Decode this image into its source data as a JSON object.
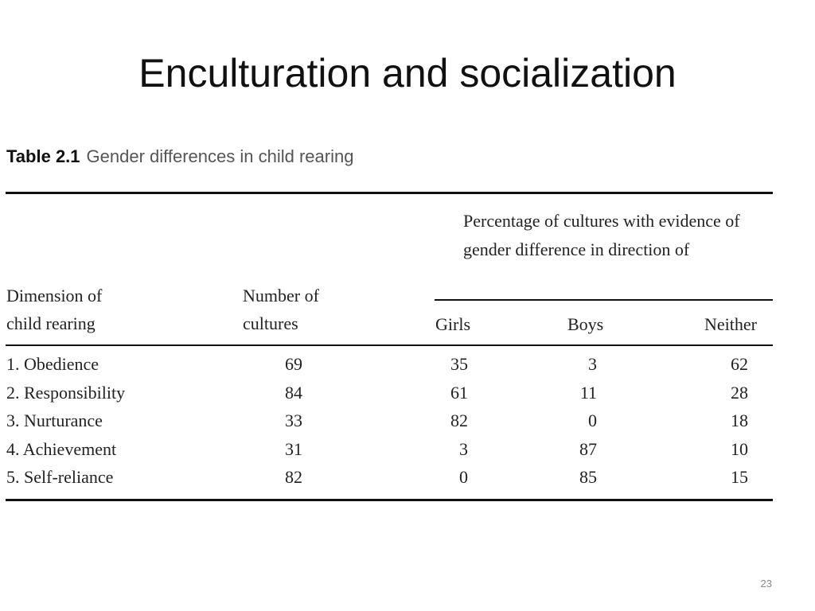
{
  "slide": {
    "title": "Enculturation and socialization",
    "page_number": "23"
  },
  "table": {
    "caption_label": "Table 2.1",
    "caption_text": "Gender differences in child rearing",
    "header": {
      "dimension_line1": "Dimension of",
      "dimension_line2": "child rearing",
      "number_line1": "Number of",
      "number_line2": "cultures",
      "percentage_group": "Percentage of cultures with evidence of gender difference in direction of",
      "girls": "Girls",
      "boys": "Boys",
      "neither": "Neither"
    },
    "rows": [
      {
        "dimension": "1. Obedience",
        "cultures": "69",
        "girls": "35",
        "boys": "3",
        "neither": "62"
      },
      {
        "dimension": "2. Responsibility",
        "cultures": "84",
        "girls": "61",
        "boys": "11",
        "neither": "28"
      },
      {
        "dimension": "3. Nurturance",
        "cultures": "33",
        "girls": "82",
        "boys": "0",
        "neither": "18"
      },
      {
        "dimension": "4. Achievement",
        "cultures": "31",
        "girls": "3",
        "boys": "87",
        "neither": "10"
      },
      {
        "dimension": "5. Self-reliance",
        "cultures": "82",
        "girls": "0",
        "boys": "85",
        "neither": "15"
      }
    ]
  }
}
